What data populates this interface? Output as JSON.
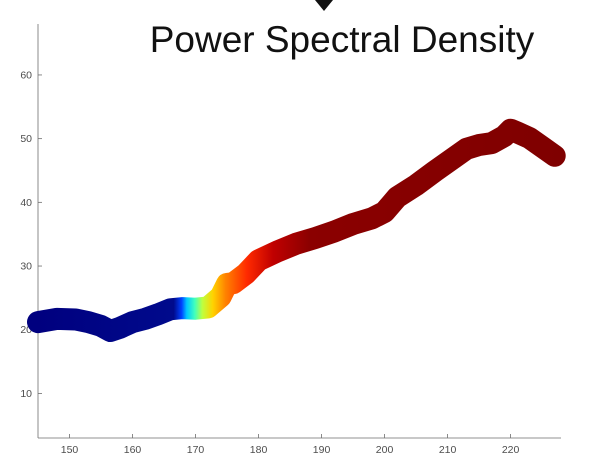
{
  "chart_data": {
    "type": "line",
    "title": "Power Spectral Density",
    "xlabel": "",
    "ylabel": "",
    "xlim": [
      145,
      228
    ],
    "ylim": [
      3,
      68
    ],
    "xticks": [
      150,
      160,
      170,
      180,
      190,
      200,
      210,
      220
    ],
    "yticks": [
      10,
      20,
      30,
      40,
      50,
      60
    ],
    "grid": false,
    "legend": "none",
    "colormap": "jet",
    "series": [
      {
        "x": [
          145,
          148,
          151,
          153,
          155,
          156.5,
          158,
          160,
          162,
          164,
          166,
          168,
          170,
          172,
          174,
          175,
          176,
          178,
          180,
          183,
          186,
          189,
          192,
          195,
          198,
          200,
          202,
          205,
          208,
          211,
          213,
          215,
          217,
          219,
          220,
          221,
          223,
          225,
          227
        ],
        "y": [
          21.2,
          21.7,
          21.6,
          21.2,
          20.6,
          19.8,
          20.3,
          21.2,
          21.7,
          22.4,
          23.2,
          23.4,
          23.3,
          23.5,
          25.2,
          27.2,
          27.3,
          28.8,
          30.9,
          32.3,
          33.5,
          34.4,
          35.4,
          36.6,
          37.5,
          38.5,
          40.8,
          42.7,
          44.9,
          47.0,
          48.4,
          49.0,
          49.3,
          50.4,
          51.4,
          51.0,
          50.1,
          48.7,
          47.3
        ]
      }
    ]
  }
}
